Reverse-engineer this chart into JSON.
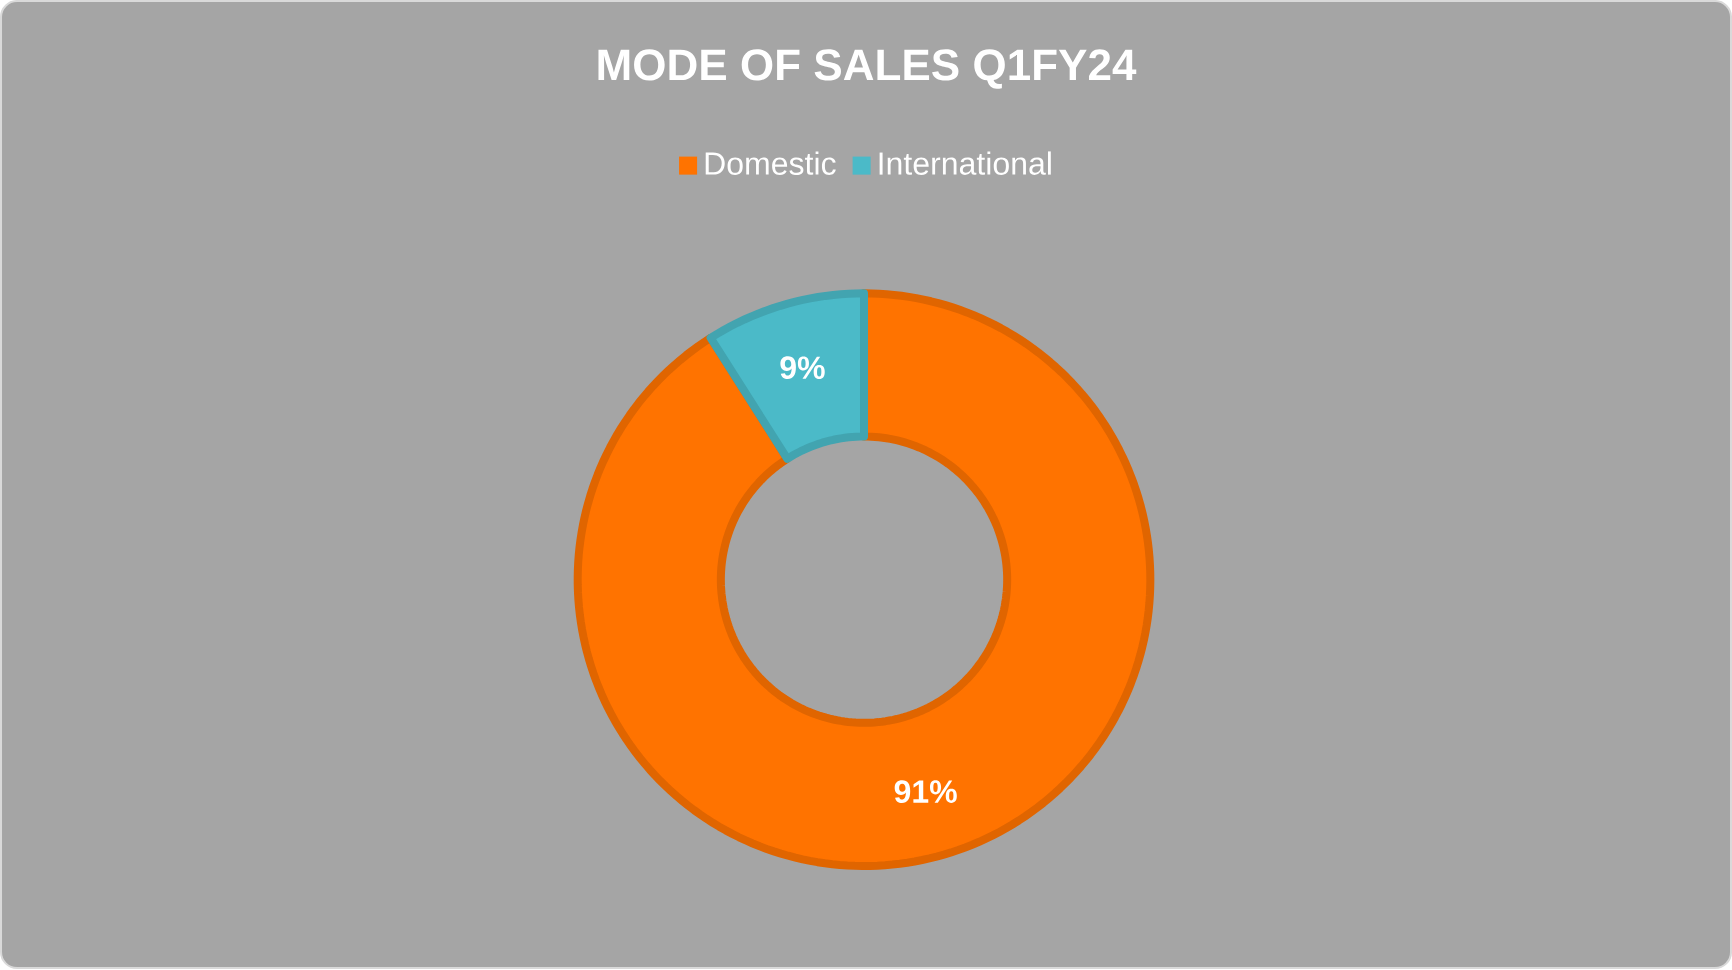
{
  "chart_data": {
    "type": "donut",
    "title": "MODE OF SALES Q1FY24",
    "categories": [
      "Domestic",
      "International"
    ],
    "values": [
      91,
      9
    ],
    "colors": [
      "#ff7300",
      "#4bbac8"
    ],
    "value_labels": [
      "91%",
      "9%"
    ],
    "legend": "top"
  }
}
